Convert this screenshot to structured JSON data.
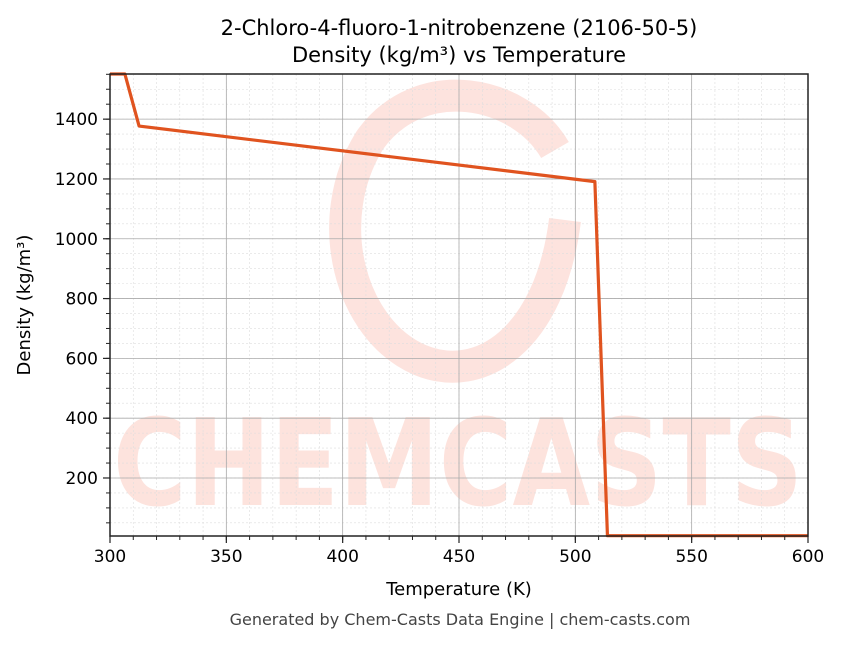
{
  "chart_data": {
    "type": "line",
    "title": "2-Chloro-4-fluoro-1-nitrobenzene (2106-50-5)",
    "subtitle": "Density (kg/m³) vs Temperature",
    "xlabel": "Temperature (K)",
    "ylabel": "Density (kg/m³)",
    "xlim": [
      300,
      600
    ],
    "ylim": [
      6,
      1551
    ],
    "xticks": [
      300,
      350,
      400,
      450,
      500,
      550,
      600
    ],
    "yticks": [
      200,
      400,
      600,
      800,
      1000,
      1200,
      1400
    ],
    "grid": true,
    "series": [
      {
        "color": "#e0531f",
        "x": [
          300,
          306.4,
          312.5,
          508.4,
          513.8,
          600
        ],
        "y": [
          1551,
          1551,
          1377,
          1191,
          7,
          7
        ]
      }
    ]
  },
  "footer": "Generated by Chem-Casts Data Engine | chem-casts.com",
  "watermark": "CHEMCASTS",
  "colors": {
    "line": "#e0531f",
    "watermark": "#fde0da"
  }
}
